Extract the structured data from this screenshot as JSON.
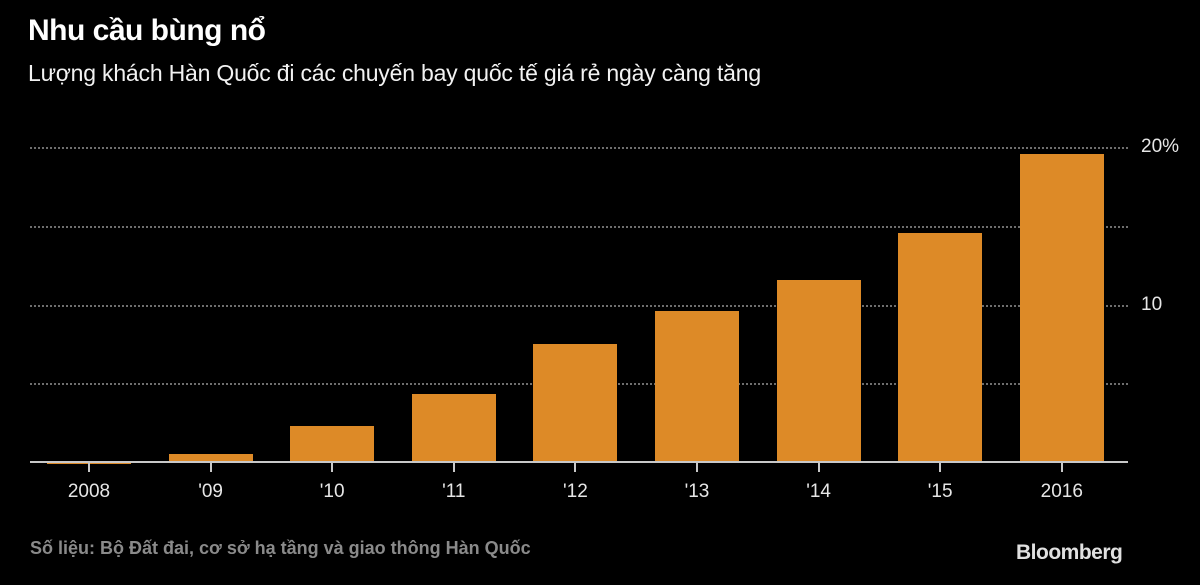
{
  "header": {
    "title": "Nhu cầu bùng nổ",
    "subtitle": "Lượng khách Hàn Quốc đi các chuyến bay quốc tế giá rẻ ngày càng tăng"
  },
  "footer": {
    "source": "Số liệu: Bộ Đất đai, cơ sở hạ tầng và giao thông Hàn Quốc",
    "brand": "Bloomberg"
  },
  "colors": {
    "background": "#000000",
    "bar": "#dd8a27",
    "gridline": "#6e6e6e",
    "axis": "#c8c8c8"
  },
  "axis": {
    "y_ticks": [
      {
        "label": "20%",
        "value": 20
      },
      {
        "label": "",
        "value": 15
      },
      {
        "label": "10",
        "value": 10
      },
      {
        "label": "",
        "value": 5
      }
    ],
    "x_labels": [
      "2008",
      "'09",
      "'10",
      "'11",
      "'12",
      "'13",
      "'14",
      "'15",
      "2016"
    ]
  },
  "chart_data": {
    "type": "bar",
    "title": "Nhu cầu bùng nổ",
    "subtitle": "Lượng khách Hàn Quốc đi các chuyến bay quốc tế giá rẻ ngày càng tăng",
    "categories": [
      "2008",
      "'09",
      "'10",
      "'11",
      "'12",
      "'13",
      "'14",
      "'15",
      "2016"
    ],
    "values": [
      -0.1,
      0.5,
      2.3,
      4.3,
      7.5,
      9.6,
      11.6,
      14.6,
      19.6
    ],
    "xlabel": "",
    "ylabel": "%",
    "ylim": [
      0,
      20
    ],
    "yticks": [
      5,
      10,
      15,
      20
    ],
    "ytick_labels": [
      "",
      "10",
      "",
      "20%"
    ],
    "y_axis_position": "right",
    "grid": "horizontal dotted",
    "legend": null,
    "source": "Số liệu: Bộ Đất đai, cơ sở hạ tầng và giao thông Hàn Quốc"
  }
}
